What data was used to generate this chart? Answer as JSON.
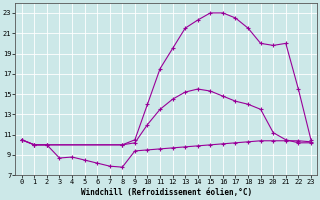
{
  "xlabel": "Windchill (Refroidissement éolien,°C)",
  "bg_color": "#cce8e8",
  "line_color": "#990099",
  "grid_color": "#ffffff",
  "xlim": [
    -0.5,
    23.5
  ],
  "ylim": [
    7,
    24
  ],
  "yticks": [
    7,
    9,
    11,
    13,
    15,
    17,
    19,
    21,
    23
  ],
  "xticks": [
    0,
    1,
    2,
    3,
    4,
    5,
    6,
    7,
    8,
    9,
    10,
    11,
    12,
    13,
    14,
    15,
    16,
    17,
    18,
    19,
    20,
    21,
    22,
    23
  ],
  "curve1_x": [
    0,
    1,
    2,
    3,
    4,
    5,
    6,
    7,
    8,
    9,
    10,
    11,
    12,
    13,
    14,
    15,
    16,
    17,
    18,
    19,
    20,
    21,
    22,
    23
  ],
  "curve1_y": [
    10.5,
    10.0,
    10.0,
    8.7,
    8.8,
    8.5,
    8.2,
    7.9,
    7.8,
    9.4,
    9.5,
    9.6,
    9.7,
    9.8,
    9.9,
    10.0,
    10.1,
    10.2,
    10.3,
    10.4,
    10.4,
    10.4,
    10.4,
    10.3
  ],
  "curve2_x": [
    0,
    1,
    2,
    8,
    9,
    10,
    11,
    12,
    13,
    14,
    15,
    16,
    17,
    18,
    19,
    20,
    21,
    22,
    23
  ],
  "curve2_y": [
    10.5,
    10.0,
    10.0,
    10.0,
    10.2,
    12.0,
    13.5,
    14.5,
    15.2,
    15.5,
    15.3,
    14.8,
    14.3,
    14.0,
    13.5,
    11.2,
    10.5,
    10.2,
    10.2
  ],
  "curve3_x": [
    0,
    1,
    2,
    8,
    9,
    10,
    11,
    12,
    13,
    14,
    15,
    16,
    17,
    18,
    19,
    20,
    21,
    22,
    23
  ],
  "curve3_y": [
    10.5,
    10.0,
    10.0,
    10.0,
    10.5,
    14.0,
    17.5,
    19.5,
    21.5,
    22.3,
    23.0,
    23.0,
    22.5,
    21.5,
    20.0,
    19.8,
    20.0,
    15.5,
    10.5
  ]
}
